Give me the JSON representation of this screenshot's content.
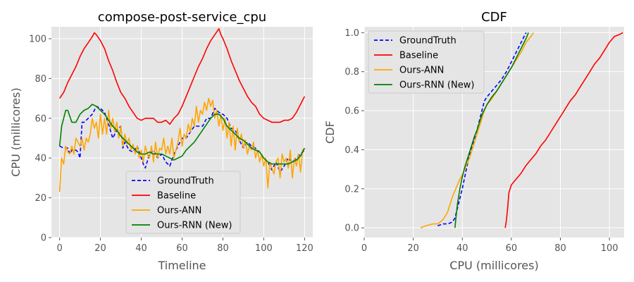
{
  "chart_data": [
    {
      "type": "line",
      "title": "compose-post-service_cpu",
      "xlabel": "Timeline",
      "ylabel": "CPU (millicores)",
      "xlim": [
        -4,
        124
      ],
      "ylim": [
        0,
        106
      ],
      "xticks": [
        0,
        20,
        40,
        60,
        80,
        100,
        120
      ],
      "yticks": [
        0,
        20,
        40,
        60,
        80,
        100
      ],
      "grid": true,
      "legend": "lower-center",
      "series": [
        {
          "name": "GroundTruth",
          "color": "#0000ff",
          "dash": "dashed",
          "x": [
            0,
            2,
            4,
            5,
            6,
            8,
            9,
            10,
            11,
            12,
            14,
            16,
            18,
            20,
            22,
            24,
            26,
            28,
            30,
            31,
            32,
            34,
            36,
            38,
            40,
            41,
            42,
            44,
            46,
            48,
            50,
            52,
            54,
            56,
            58,
            60,
            62,
            64,
            66,
            68,
            70,
            72,
            74,
            76,
            78,
            80,
            82,
            84,
            86,
            88,
            90,
            92,
            94,
            96,
            98,
            100,
            102,
            104,
            106,
            108,
            110,
            112,
            114,
            116,
            118,
            120
          ],
          "y": [
            46,
            45,
            45,
            42,
            44,
            44,
            43,
            40,
            58,
            58,
            60,
            62,
            66,
            65,
            63,
            57,
            50,
            54,
            56,
            45,
            48,
            44,
            43,
            46,
            40,
            37,
            35,
            42,
            44,
            40,
            42,
            38,
            36,
            42,
            46,
            50,
            50,
            53,
            56,
            56,
            56,
            60,
            60,
            65,
            63,
            62,
            60,
            55,
            54,
            49,
            45,
            48,
            46,
            45,
            43,
            40,
            38,
            34,
            38,
            33,
            36,
            40,
            38,
            40,
            42,
            44
          ]
        },
        {
          "name": "Baseline",
          "color": "#ff0000",
          "dash": "solid",
          "x": [
            0,
            2,
            4,
            6,
            8,
            10,
            12,
            14,
            16,
            17,
            18,
            20,
            22,
            24,
            26,
            28,
            30,
            32,
            34,
            36,
            38,
            40,
            42,
            44,
            46,
            48,
            50,
            52,
            54,
            56,
            58,
            60,
            62,
            64,
            66,
            68,
            70,
            72,
            74,
            76,
            78,
            79,
            80,
            82,
            84,
            86,
            88,
            90,
            92,
            94,
            96,
            98,
            100,
            102,
            104,
            106,
            108,
            110,
            112,
            114,
            116,
            118,
            120
          ],
          "y": [
            70,
            73,
            78,
            82,
            86,
            91,
            95,
            98,
            101,
            103,
            102,
            99,
            95,
            89,
            84,
            78,
            73,
            70,
            66,
            63,
            60,
            59,
            60,
            60,
            60,
            58,
            58,
            59,
            57,
            60,
            62,
            66,
            71,
            76,
            81,
            86,
            90,
            95,
            99,
            102,
            105,
            102,
            100,
            95,
            89,
            84,
            79,
            75,
            71,
            68,
            66,
            62,
            60,
            59,
            58,
            58,
            58,
            59,
            59,
            60,
            63,
            67,
            71
          ]
        },
        {
          "name": "Ours-ANN",
          "color": "#ffa500",
          "dash": "solid",
          "x": [
            0,
            1,
            2,
            3,
            4,
            5,
            6,
            7,
            8,
            9,
            10,
            11,
            12,
            13,
            14,
            15,
            16,
            17,
            18,
            19,
            20,
            21,
            22,
            23,
            24,
            25,
            26,
            27,
            28,
            29,
            30,
            31,
            32,
            33,
            34,
            35,
            36,
            37,
            38,
            39,
            40,
            41,
            42,
            43,
            44,
            45,
            46,
            47,
            48,
            49,
            50,
            51,
            52,
            53,
            54,
            55,
            56,
            57,
            58,
            59,
            60,
            61,
            62,
            63,
            64,
            65,
            66,
            67,
            68,
            69,
            70,
            71,
            72,
            73,
            74,
            75,
            76,
            77,
            78,
            79,
            80,
            81,
            82,
            83,
            84,
            85,
            86,
            87,
            88,
            89,
            90,
            91,
            92,
            93,
            94,
            95,
            96,
            97,
            98,
            99,
            100,
            101,
            102,
            103,
            104,
            105,
            106,
            107,
            108,
            109,
            110,
            111,
            112,
            113,
            114,
            115,
            116,
            117,
            118,
            119,
            120
          ],
          "y": [
            23,
            40,
            37,
            46,
            43,
            42,
            46,
            42,
            50,
            48,
            46,
            50,
            44,
            50,
            48,
            52,
            60,
            55,
            58,
            50,
            62,
            52,
            60,
            52,
            64,
            55,
            60,
            53,
            58,
            50,
            56,
            46,
            52,
            47,
            50,
            44,
            47,
            42,
            46,
            40,
            44,
            38,
            46,
            42,
            40,
            46,
            38,
            48,
            40,
            45,
            44,
            50,
            42,
            46,
            42,
            50,
            40,
            44,
            48,
            55,
            46,
            52,
            50,
            57,
            53,
            60,
            56,
            66,
            58,
            64,
            62,
            68,
            64,
            70,
            66,
            69,
            60,
            64,
            56,
            62,
            54,
            60,
            50,
            58,
            46,
            56,
            44,
            55,
            48,
            52,
            45,
            49,
            42,
            46,
            44,
            48,
            40,
            44,
            38,
            42,
            36,
            40,
            25,
            38,
            35,
            32,
            38,
            40,
            30,
            42,
            38,
            40,
            35,
            44,
            30,
            40,
            36,
            42,
            33,
            44,
            45
          ]
        },
        {
          "name": "Ours-RNN (New)",
          "color": "#008000",
          "dash": "solid",
          "x": [
            0,
            1,
            2,
            3,
            4,
            6,
            8,
            10,
            12,
            14,
            16,
            18,
            20,
            22,
            24,
            26,
            28,
            30,
            32,
            34,
            36,
            38,
            40,
            42,
            44,
            46,
            48,
            50,
            52,
            54,
            56,
            58,
            60,
            62,
            64,
            66,
            68,
            70,
            72,
            74,
            76,
            78,
            80,
            82,
            84,
            86,
            88,
            90,
            92,
            94,
            96,
            98,
            100,
            102,
            104,
            106,
            108,
            110,
            112,
            114,
            116,
            118,
            120
          ],
          "y": [
            46,
            56,
            60,
            64,
            64,
            58,
            58,
            62,
            64,
            65,
            67,
            66,
            64,
            62,
            59,
            56,
            54,
            51,
            49,
            47,
            45,
            43,
            42,
            42,
            43,
            42,
            42,
            42,
            41,
            40,
            39,
            40,
            41,
            44,
            46,
            48,
            51,
            54,
            57,
            60,
            62,
            62,
            60,
            56,
            54,
            52,
            50,
            49,
            47,
            45,
            44,
            43,
            40,
            38,
            37,
            37,
            37,
            37,
            37,
            38,
            39,
            41,
            45
          ]
        }
      ]
    },
    {
      "type": "line",
      "title": "CDF",
      "xlabel": "CPU (millicores)",
      "ylabel": "CDF",
      "xlim": [
        0,
        106
      ],
      "ylim": [
        -0.05,
        1.03
      ],
      "xticks": [
        0,
        20,
        40,
        60,
        80,
        100
      ],
      "yticks": [
        0.0,
        0.2,
        0.4,
        0.6,
        0.8,
        1.0
      ],
      "grid": true,
      "legend": "top-left",
      "series": [
        {
          "name": "GroundTruth",
          "color": "#0000ff",
          "dash": "dashed",
          "x": [
            30,
            32,
            34,
            36,
            37,
            38,
            39,
            40,
            41,
            42,
            43,
            44,
            45,
            46,
            47,
            48,
            49,
            50,
            52,
            54,
            56,
            58,
            60,
            62,
            64,
            66
          ],
          "y": [
            0.01,
            0.02,
            0.02,
            0.03,
            0.05,
            0.1,
            0.15,
            0.2,
            0.26,
            0.32,
            0.38,
            0.42,
            0.46,
            0.5,
            0.55,
            0.6,
            0.65,
            0.67,
            0.7,
            0.73,
            0.76,
            0.8,
            0.85,
            0.9,
            0.95,
            1.0
          ]
        },
        {
          "name": "Baseline",
          "color": "#ff0000",
          "dash": "solid",
          "x": [
            57.5,
            58,
            58.5,
            59,
            60,
            62,
            64,
            66,
            68,
            70,
            72,
            74,
            76,
            78,
            80,
            82,
            84,
            86,
            88,
            90,
            92,
            94,
            96,
            98,
            100,
            102,
            104,
            105.5
          ],
          "y": [
            0.0,
            0.04,
            0.1,
            0.18,
            0.22,
            0.25,
            0.28,
            0.32,
            0.35,
            0.38,
            0.42,
            0.45,
            0.49,
            0.53,
            0.57,
            0.61,
            0.65,
            0.68,
            0.72,
            0.76,
            0.8,
            0.84,
            0.87,
            0.91,
            0.95,
            0.98,
            0.99,
            1.0
          ]
        },
        {
          "name": "Ours-ANN",
          "color": "#ffa500",
          "dash": "solid",
          "x": [
            23,
            25,
            28,
            30,
            32,
            34,
            35,
            36,
            37,
            38,
            39,
            40,
            41,
            42,
            43,
            44,
            45,
            46,
            47,
            48,
            49,
            50,
            52,
            54,
            56,
            58,
            60,
            62,
            64,
            66,
            68,
            69
          ],
          "y": [
            0.0,
            0.01,
            0.02,
            0.02,
            0.04,
            0.08,
            0.12,
            0.16,
            0.19,
            0.22,
            0.25,
            0.27,
            0.3,
            0.33,
            0.36,
            0.4,
            0.44,
            0.48,
            0.52,
            0.56,
            0.6,
            0.63,
            0.66,
            0.7,
            0.74,
            0.78,
            0.82,
            0.86,
            0.9,
            0.95,
            0.98,
            1.0
          ]
        },
        {
          "name": "Ours-RNN (New)",
          "color": "#008000",
          "dash": "solid",
          "x": [
            37,
            37.5,
            38,
            39,
            40,
            41,
            42,
            43,
            44,
            45,
            46,
            47,
            48,
            50,
            52,
            54,
            56,
            58,
            60,
            62,
            64,
            66,
            67
          ],
          "y": [
            0.0,
            0.06,
            0.12,
            0.2,
            0.26,
            0.31,
            0.35,
            0.39,
            0.43,
            0.47,
            0.5,
            0.54,
            0.58,
            0.63,
            0.67,
            0.7,
            0.74,
            0.78,
            0.82,
            0.87,
            0.92,
            0.97,
            1.0
          ]
        }
      ]
    }
  ]
}
